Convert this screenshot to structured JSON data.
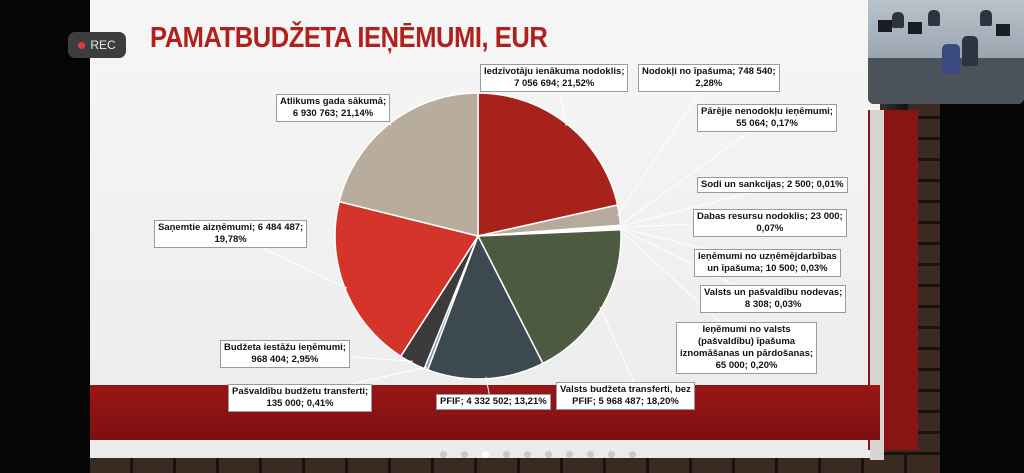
{
  "recording": {
    "label": "REC"
  },
  "slide": {
    "title": "PAMATBUDŽETA IEŅĒMUMI, EUR"
  },
  "chart_data": {
    "type": "pie",
    "title": "PAMATBUDŽETA IEŅĒMUMI, EUR",
    "slices": [
      {
        "label": "Iedzīvotāju ienākuma nodoklis; 7 056 694; 21,52%",
        "value": 7056694,
        "percent": 21.52,
        "color": "#a8221c"
      },
      {
        "label": "Nodokļi no īpašuma; 748 540; 2,28%",
        "value": 748540,
        "percent": 2.28,
        "color": "#b5aa9c"
      },
      {
        "label": "Pārējie nenodokļu ieņēmumi; 55 064; 0,17%",
        "value": 55064,
        "percent": 0.17,
        "color": "#c23028"
      },
      {
        "label": "Sodi un sankcijas; 2 500; 0,01%",
        "value": 2500,
        "percent": 0.01,
        "color": "#444444"
      },
      {
        "label": "Dabas resursu nodoklis; 23 000; 0,07%",
        "value": 23000,
        "percent": 0.07,
        "color": "#6d7a8a"
      },
      {
        "label": "Ieņēmumi no uzņēmējdarbības un īpašuma; 10 500; 0,03%",
        "value": 10500,
        "percent": 0.03,
        "color": "#888888"
      },
      {
        "label": "Valsts un pašvaldību nodevas; 8 308; 0,03%",
        "value": 8308,
        "percent": 0.03,
        "color": "#999999"
      },
      {
        "label": "Ieņēmumi no valsts (pašvaldību) īpašuma iznomāšanas un pārdošanas; 65 000; 0,20%",
        "value": 65000,
        "percent": 0.2,
        "color": "#7a8d6a"
      },
      {
        "label": "Valsts budžeta transferti, bez PFIF; 5 968 487; 18,20%",
        "value": 5968487,
        "percent": 18.2,
        "color": "#4e5a40"
      },
      {
        "label": "PFIF; 4 332 502; 13,21%",
        "value": 4332502,
        "percent": 13.21,
        "color": "#3c4a50"
      },
      {
        "label": "Pašvaldību budžetu transferti; 135 000; 0,41%",
        "value": 135000,
        "percent": 0.41,
        "color": "#8c96b4"
      },
      {
        "label": "Budžeta iestāžu ieņēmumi; 968 404; 2,95%",
        "value": 968404,
        "percent": 2.95,
        "color": "#3d3a3c"
      },
      {
        "label": "Saņemtie aizņēmumi; 6 484 487; 19,78%",
        "value": 6484487,
        "percent": 19.78,
        "color": "#d4342a"
      },
      {
        "label": "Atlikums gada sākumā; 6 930 763; 21,14%",
        "value": 6930763,
        "percent": 21.14,
        "color": "#b8ad9d"
      }
    ]
  },
  "labels": [
    {
      "line1": "Iedzīvotāju ienākuma nodoklis;",
      "line2": "7 056 694; 21,52%"
    },
    {
      "line1": "Nodokļi no īpašuma; 748 540;",
      "line2": "2,28%"
    },
    {
      "line1": "Pārējie nenodokļu ieņēmumi;",
      "line2": "55 064; 0,17%"
    },
    {
      "line1": "Sodi un sankcijas; 2 500; 0,01%",
      "line2": ""
    },
    {
      "line1": "Dabas resursu nodoklis; 23 000;",
      "line2": "0,07%"
    },
    {
      "line1": "Ieņēmumi no uzņēmējdarbības",
      "line2": "un īpašuma; 10 500; 0,03%"
    },
    {
      "line1": "Valsts un pašvaldību nodevas;",
      "line2": "8 308; 0,03%"
    },
    {
      "line1": "Ieņēmumi no valsts",
      "line2": "(pašvaldību) īpašuma",
      "line3": "iznomāšanas un pārdošanas;",
      "line4": "65 000; 0,20%"
    },
    {
      "line1": "Valsts budžeta transferti, bez",
      "line2": "PFIF; 5 968 487; 18,20%"
    },
    {
      "line1": "PFIF; 4 332 502; 13,21%",
      "line2": ""
    },
    {
      "line1": "Pašvaldību budžetu transferti;",
      "line2": "135 000; 0,41%"
    },
    {
      "line1": "Budžeta iestāžu ieņēmumi;",
      "line2": "968 404; 2,95%"
    },
    {
      "line1": "Saņemtie aizņēmumi; 6 484 487;",
      "line2": "19,78%"
    },
    {
      "line1": "Atlikums gada sākumā;",
      "line2": "6 930 763; 21,14%"
    }
  ],
  "pager": {
    "count": 10,
    "active_index": 2
  }
}
